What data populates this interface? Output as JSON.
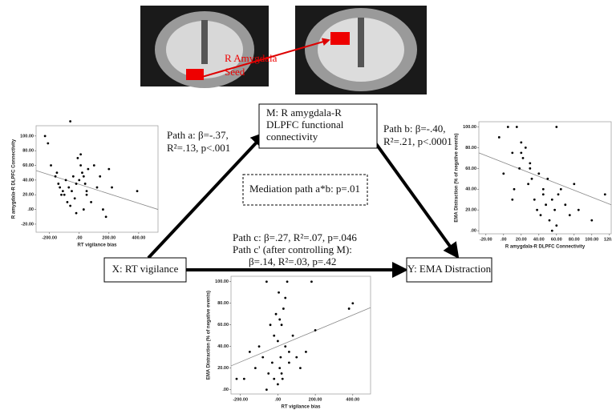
{
  "diagram": {
    "seed_label": [
      "R Amygdala",
      "Seed"
    ],
    "node_m": [
      "M: R amygdala-R",
      "DLPFC functional",
      "connectivity"
    ],
    "node_x": "X: RT vigilance",
    "node_y": "Y: EMA Distraction",
    "path_a": [
      "Path a: β=-.37,",
      "R²=.13, p<.001"
    ],
    "path_b": [
      "Path b: β=-.40,",
      "R²=.21, p<.0001"
    ],
    "path_c": [
      "Path c: β=.27, R²=.07, p=.046",
      "Path c' (after controlling M):",
      "β=.14, R²=.03, p=.42"
    ],
    "mediation": "Mediation path a*b: p=.01"
  },
  "chart_data": [
    {
      "type": "scatter",
      "xlabel": "RT vigilance bias",
      "ylabel": "R amygdala-R DLPFC Connectivity",
      "x": [
        -230,
        -210,
        -190,
        -160,
        -150,
        -130,
        -120,
        -110,
        -100,
        -90,
        -80,
        -70,
        -60,
        -50,
        -40,
        -30,
        -20,
        -10,
        0,
        10,
        20,
        30,
        40,
        50,
        60,
        80,
        100,
        120,
        140,
        160,
        180,
        200,
        220,
        -60,
        -20,
        10,
        30,
        -140,
        50,
        390
      ],
      "y": [
        100,
        90,
        60,
        45,
        50,
        30,
        20,
        25,
        20,
        40,
        10,
        30,
        120,
        25,
        45,
        15,
        35,
        70,
        40,
        60,
        50,
        0,
        35,
        20,
        55,
        10,
        60,
        30,
        45,
        0,
        -10,
        55,
        30,
        5,
        -5,
        75,
        45,
        35,
        25,
        25
      ],
      "fit": {
        "x": [
          -290,
          530
        ],
        "y": [
          53,
          0
        ]
      },
      "xlim": [
        -290,
        530
      ],
      "ylim": [
        -31,
        114
      ],
      "xticks": [
        {
          "value": -200,
          "label": "-200.00"
        },
        {
          "value": 0,
          "label": ".00"
        },
        {
          "value": 200,
          "label": "200.00"
        },
        {
          "value": 400,
          "label": "400.00"
        }
      ],
      "yticks": [
        {
          "value": -20,
          "label": "-20.00"
        },
        {
          "value": 0,
          "label": ".00"
        },
        {
          "value": 20,
          "label": "20.00"
        },
        {
          "value": 40,
          "label": "40.00"
        },
        {
          "value": 60,
          "label": "60.00"
        },
        {
          "value": 80,
          "label": "80.00"
        },
        {
          "value": 100,
          "label": "100.00"
        }
      ]
    },
    {
      "type": "scatter",
      "xlabel": "R amygdala-R DLPFC Connectivity",
      "ylabel": "EMA Distraction (% of negative events)",
      "x": [
        -5,
        0,
        5,
        10,
        12,
        15,
        18,
        20,
        22,
        25,
        28,
        30,
        32,
        35,
        38,
        40,
        42,
        45,
        48,
        50,
        52,
        55,
        58,
        60,
        62,
        65,
        70,
        75,
        80,
        85,
        100,
        115,
        20,
        30,
        45,
        55,
        10,
        60
      ],
      "y": [
        90,
        55,
        100,
        75,
        40,
        100,
        60,
        85,
        70,
        80,
        45,
        65,
        50,
        30,
        20,
        55,
        15,
        40,
        25,
        50,
        10,
        30,
        20,
        100,
        35,
        40,
        25,
        15,
        45,
        20,
        10,
        35,
        75,
        60,
        35,
        0,
        30,
        5
      ],
      "fit": {
        "x": [
          -28,
          122
        ],
        "y": [
          75,
          25
        ]
      },
      "xlim": [
        -28,
        122
      ],
      "ylim": [
        -3,
        105
      ],
      "xticks": [
        {
          "value": -20,
          "label": "-20.00"
        },
        {
          "value": 0,
          "label": ".00"
        },
        {
          "value": 20,
          "label": "20.00"
        },
        {
          "value": 40,
          "label": "40.00"
        },
        {
          "value": 60,
          "label": "60.00"
        },
        {
          "value": 80,
          "label": "80.00"
        },
        {
          "value": 100,
          "label": "100.00"
        },
        {
          "value": 120,
          "label": "120.0"
        }
      ],
      "yticks": [
        {
          "value": 0,
          "label": ".00"
        },
        {
          "value": 20,
          "label": "20.00"
        },
        {
          "value": 40,
          "label": "40.00"
        },
        {
          "value": 60,
          "label": "60.00"
        },
        {
          "value": 80,
          "label": "80.00"
        },
        {
          "value": 100,
          "label": "100.00"
        }
      ]
    },
    {
      "type": "scatter",
      "xlabel": "RT vigilance bias",
      "ylabel": "EMA Distraction (% of negative events)",
      "x": [
        -220,
        -180,
        -150,
        -120,
        -100,
        -80,
        -60,
        -50,
        -40,
        -30,
        -20,
        -10,
        0,
        5,
        10,
        15,
        20,
        25,
        30,
        40,
        50,
        60,
        80,
        100,
        120,
        150,
        180,
        200,
        380,
        400,
        -60,
        0,
        20,
        40,
        -20,
        10,
        60
      ],
      "y": [
        10,
        10,
        35,
        20,
        40,
        30,
        100,
        15,
        60,
        25,
        50,
        70,
        45,
        90,
        20,
        30,
        60,
        10,
        75,
        40,
        100,
        35,
        50,
        30,
        20,
        35,
        100,
        55,
        75,
        80,
        0,
        5,
        15,
        85,
        10,
        65,
        25
      ],
      "fit": {
        "x": [
          -250,
          495
        ],
        "y": [
          22,
          76
        ]
      },
      "xlim": [
        -250,
        495
      ],
      "ylim": [
        -4,
        105
      ],
      "xticks": [
        {
          "value": -200,
          "label": "-200.00"
        },
        {
          "value": 0,
          "label": ".00"
        },
        {
          "value": 200,
          "label": "200.00"
        },
        {
          "value": 400,
          "label": "400.00"
        }
      ],
      "yticks": [
        {
          "value": 0,
          "label": ".00"
        },
        {
          "value": 20,
          "label": "20.00"
        },
        {
          "value": 40,
          "label": "40.00"
        },
        {
          "value": 60,
          "label": "60.00"
        },
        {
          "value": 80,
          "label": "80.00"
        },
        {
          "value": 100,
          "label": "100.00"
        }
      ]
    }
  ]
}
